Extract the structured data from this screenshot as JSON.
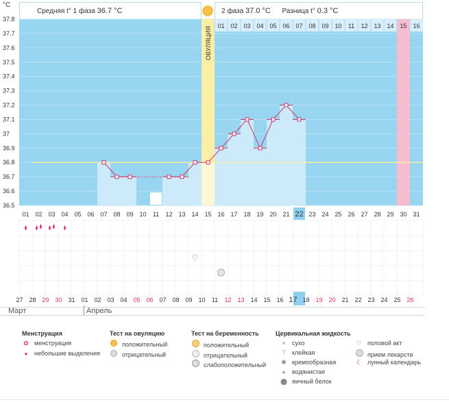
{
  "header": {
    "phase1_label": "Средняя t° 1 фаза",
    "phase1_value": "36.7 °C",
    "phase2_label": "2 фаза",
    "phase2_value": "37.0 °C",
    "diff_label": "Разница t°",
    "diff_value": "0.3 °C"
  },
  "chart_data": {
    "type": "line",
    "unit_label": "°C",
    "ylim": [
      36.5,
      37.8
    ],
    "y_ticks": [
      "37.8",
      "37.7",
      "37.6",
      "37.5",
      "37.4",
      "37.3",
      "37.2",
      "37.1",
      "37",
      "36.9",
      "36.8",
      "36.7",
      "36.6",
      "36.5"
    ],
    "ovulation_label": "ОВУЛЯЦИЯ",
    "ovulation_day_index": 14,
    "coverline": 36.8,
    "cycle_days_top": [
      "01",
      "02",
      "03",
      "04",
      "05",
      "06",
      "07",
      "08",
      "09",
      "10",
      "11",
      "12",
      "13",
      "14",
      "15",
      "16"
    ],
    "days_bottom": [
      "01",
      "02",
      "03",
      "04",
      "05",
      "06",
      "07",
      "08",
      "09",
      "10",
      "11",
      "12",
      "13",
      "14",
      "15",
      "16",
      "17",
      "18",
      "19",
      "20",
      "21",
      "22",
      "23",
      "24",
      "25",
      "26",
      "27",
      "28",
      "29",
      "30",
      "31"
    ],
    "highlight_day_bottom": "22",
    "pink_day_top": "15",
    "pink_day_bottom": "30",
    "temperatures": [
      {
        "day": 7,
        "temp": 36.8
      },
      {
        "day": 8,
        "temp": 36.7
      },
      {
        "day": 9,
        "temp": 36.7
      },
      {
        "day": 12,
        "temp": 36.7
      },
      {
        "day": 13,
        "temp": 36.7
      },
      {
        "day": 14,
        "temp": 36.8
      },
      {
        "day": 15,
        "temp": 36.8
      },
      {
        "day": 16,
        "temp": 36.9
      },
      {
        "day": 17,
        "temp": 37.0
      },
      {
        "day": 18,
        "temp": 37.1
      },
      {
        "day": 19,
        "temp": 36.9
      },
      {
        "day": 20,
        "temp": 37.1
      },
      {
        "day": 21,
        "temp": 37.2
      },
      {
        "day": 22,
        "temp": 37.1
      }
    ],
    "dashed_gap": [
      9,
      12
    ]
  },
  "markers": {
    "menstruation_days": [
      1,
      2,
      3,
      4
    ],
    "moon_day": 11,
    "heart_day": 14,
    "pill_day": 16
  },
  "calendar": {
    "dates": [
      {
        "d": "27",
        "red": false
      },
      {
        "d": "28",
        "red": false
      },
      {
        "d": "29",
        "red": true
      },
      {
        "d": "30",
        "red": true
      },
      {
        "d": "31",
        "red": false
      },
      {
        "d": "01",
        "red": false
      },
      {
        "d": "02",
        "red": false
      },
      {
        "d": "03",
        "red": false
      },
      {
        "d": "04",
        "red": false
      },
      {
        "d": "05",
        "red": true
      },
      {
        "d": "06",
        "red": true
      },
      {
        "d": "07",
        "red": false
      },
      {
        "d": "08",
        "red": false
      },
      {
        "d": "09",
        "red": false
      },
      {
        "d": "10",
        "red": false
      },
      {
        "d": "11",
        "red": false
      },
      {
        "d": "12",
        "red": true
      },
      {
        "d": "13",
        "red": true
      },
      {
        "d": "14",
        "red": false
      },
      {
        "d": "15",
        "red": false
      },
      {
        "d": "16",
        "red": false
      },
      {
        "d": "17",
        "red": false
      },
      {
        "d": "18",
        "red": false
      },
      {
        "d": "19",
        "red": true
      },
      {
        "d": "20",
        "red": true
      },
      {
        "d": "21",
        "red": false
      },
      {
        "d": "22",
        "red": false
      },
      {
        "d": "23",
        "red": false
      },
      {
        "d": "24",
        "red": false
      },
      {
        "d": "25",
        "red": false
      },
      {
        "d": "26",
        "red": true
      }
    ],
    "highlight_date": "17",
    "month1": "Март",
    "month2": "Апрель"
  },
  "legend": {
    "menstruation_title": "Менструация",
    "menstruation": "менструация",
    "small_discharge": "небольшие выделения",
    "ovulation_test_title": "Тест на овуляцию",
    "positive": "положительный",
    "negative": "отрицательный",
    "pregnancy_test_title": "Тест на беременность",
    "preg_positive": "положительный",
    "preg_negative": "отрицательный",
    "preg_weak": "слабоположительный",
    "cervical_title": "Цервикальная жидкость",
    "dry": "сухо",
    "sticky": "клейкая",
    "creamy": "кремообразная",
    "watery": "водянистая",
    "egg_white": "яичный белок",
    "intercourse": "половой акт",
    "medication": "прием лекарств",
    "lunar": "лунный календарь"
  },
  "colors": {
    "chart_bg": "#97d5f0",
    "bar_fill": "#cdeafb",
    "ovulation": "#fbeea6",
    "pink": "#f8bcd0",
    "line": "#cc3366",
    "coverline": "#f5f0a0",
    "highlight": "#8fd0ee"
  }
}
